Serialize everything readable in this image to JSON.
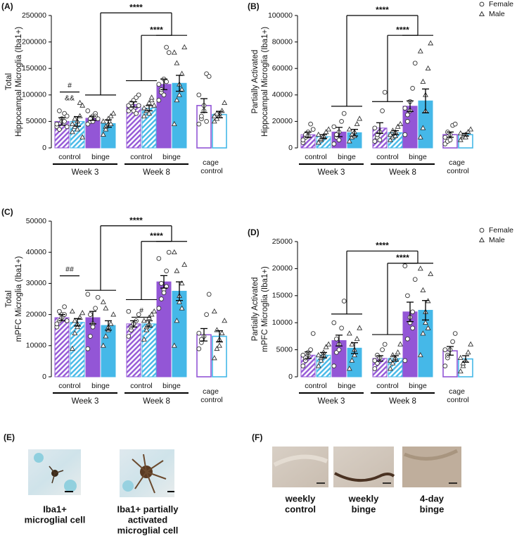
{
  "chart_data": [
    {
      "type": "bar",
      "panel_label": "(A)",
      "y_label": [
        "Total",
        "Hippocampal Microglia (Iba1+)"
      ],
      "ylim": [
        0,
        250000
      ],
      "yticks": [
        0,
        50000,
        100000,
        150000,
        200000,
        250000
      ],
      "categories": [
        "control",
        "binge",
        "control",
        "binge",
        "cage control"
      ],
      "x_groups": [
        "Week 3",
        "Week 8"
      ],
      "fill_styles": [
        "hatch",
        "solid",
        "hatch",
        "solid",
        "outline"
      ],
      "legend": false,
      "annotations": [
        "****",
        "****",
        "#",
        "&&"
      ],
      "series": [
        {
          "marker": "circle",
          "color": "#9356d6",
          "values": [
            50000,
            56000,
            82000,
            120000,
            80000
          ],
          "errors": [
            7000,
            4000,
            5000,
            10000,
            13000
          ],
          "points": [
            [
              40000,
              35000,
              55000,
              65000,
              60000,
              45000,
              70000,
              50000,
              50000,
              40000
            ],
            [
              45000,
              50000,
              60000,
              65000,
              55000,
              70000,
              55000,
              50000,
              60000
            ],
            [
              70000,
              75000,
              90000,
              95000,
              100000,
              80000,
              85000,
              70000,
              65000,
              80000
            ],
            [
              90000,
              105000,
              130000,
              190000,
              180000,
              120000,
              110000,
              100000,
              125000
            ],
            [
              45000,
              55000,
              70000,
              140000,
              135000,
              100000,
              60000,
              80000,
              50000
            ]
          ]
        },
        {
          "marker": "triangle",
          "color": "#45b8e8",
          "values": [
            50000,
            46000,
            75000,
            122000,
            63000
          ],
          "errors": [
            9000,
            7000,
            5000,
            15000,
            6000
          ],
          "points": [
            [
              30000,
              40000,
              50000,
              85000,
              80000,
              45000,
              55000,
              35000,
              60000,
              20000
            ],
            [
              25000,
              35000,
              45000,
              60000,
              65000,
              50000,
              40000,
              55000,
              45000
            ],
            [
              60000,
              70000,
              85000,
              90000,
              80000,
              75000,
              70000,
              65000,
              95000
            ],
            [
              45000,
              90000,
              120000,
              140000,
              190000,
              180000,
              160000,
              100000,
              110000
            ],
            [
              50000,
              55000,
              65000,
              70000,
              85000,
              60000,
              65000,
              60000
            ]
          ]
        }
      ]
    },
    {
      "type": "bar",
      "panel_label": "(B)",
      "y_label": [
        "Partially Activated",
        "Hippocampal Microglia (Iba1+)"
      ],
      "ylim": [
        0,
        100000
      ],
      "yticks": [
        0,
        20000,
        40000,
        60000,
        80000,
        100000
      ],
      "categories": [
        "control",
        "binge",
        "control",
        "binge",
        "cage control"
      ],
      "x_groups": [
        "Week 3",
        "Week 8"
      ],
      "fill_styles": [
        "hatch",
        "solid",
        "hatch",
        "solid",
        "outline"
      ],
      "legend": "top-right",
      "annotations": [
        "****",
        "****"
      ],
      "series": [
        {
          "name": "Female",
          "marker": "circle",
          "color": "#9356d6",
          "values": [
            10000,
            12000,
            15000,
            31500,
            10000
          ],
          "errors": [
            2000,
            3500,
            4000,
            4000,
            2000
          ],
          "points": [
            [
              4000,
              8000,
              12000,
              18000,
              14000,
              6000,
              10000,
              9000
            ],
            [
              3000,
              8000,
              12000,
              20000,
              26000,
              16000,
              10000,
              6000
            ],
            [
              5000,
              8000,
              12000,
              28000,
              42000,
              15000,
              10000,
              6000
            ],
            [
              10000,
              20000,
              28000,
              45000,
              64000,
              30000,
              25000,
              35000
            ],
            [
              3000,
              5000,
              10000,
              17000,
              18000,
              8000,
              12000,
              6000
            ]
          ]
        },
        {
          "name": "Male",
          "marker": "triangle",
          "color": "#45b8e8",
          "values": [
            8500,
            11500,
            11500,
            35500,
            10000
          ],
          "errors": [
            1500,
            2500,
            1500,
            9000,
            1000
          ],
          "points": [
            [
              4000,
              6000,
              8000,
              12000,
              14000,
              10000,
              7000,
              9000
            ],
            [
              5000,
              8000,
              12000,
              18000,
              22000,
              14000,
              10000,
              9000
            ],
            [
              6000,
              8000,
              12000,
              16000,
              18000,
              10000,
              13000,
              9000
            ],
            [
              8000,
              15000,
              40000,
              60000,
              79000,
              73000,
              50000,
              28000
            ],
            [
              6000,
              8000,
              10000,
              12000,
              14000,
              11000,
              9000,
              8000
            ]
          ]
        }
      ]
    },
    {
      "type": "bar",
      "panel_label": "(C)",
      "y_label": [
        "Total",
        "mPFC Microglia (Iba1+)"
      ],
      "ylim": [
        0,
        50000
      ],
      "yticks": [
        0,
        10000,
        20000,
        30000,
        40000,
        50000
      ],
      "categories": [
        "control",
        "binge",
        "control",
        "binge",
        "cage control"
      ],
      "x_groups": [
        "Week 3",
        "Week 8"
      ],
      "fill_styles": [
        "hatch",
        "solid",
        "hatch",
        "solid",
        "outline"
      ],
      "legend": false,
      "annotations": [
        "****",
        "****",
        "##",
        "#"
      ],
      "series": [
        {
          "marker": "circle",
          "color": "#9356d6",
          "values": [
            19000,
            19000,
            17000,
            30500,
            13500
          ],
          "errors": [
            1000,
            2000,
            1000,
            2000,
            2000
          ],
          "points": [
            [
              16000,
              18000,
              20000,
              22500,
              18000,
              17000,
              21000,
              19000,
              20000
            ],
            [
              9000,
              13000,
              17000,
              22000,
              25500,
              26500,
              20000,
              16000
            ],
            [
              13000,
              15000,
              17000,
              18000,
              20000,
              21000,
              16000,
              17000
            ],
            [
              22000,
              25000,
              28000,
              34000,
              40000,
              38000,
              30000,
              27000,
              29000
            ],
            [
              9000,
              11000,
              13000,
              20000,
              26500,
              14000,
              12000
            ]
          ]
        },
        {
          "marker": "triangle",
          "color": "#45b8e8",
          "values": [
            17500,
            16500,
            17000,
            27500,
            13000
          ],
          "errors": [
            1200,
            1500,
            1000,
            3000,
            1800
          ],
          "points": [
            [
              9000,
              14000,
              17000,
              19000,
              20500,
              21000,
              18000,
              16000,
              19000
            ],
            [
              10000,
              13000,
              15000,
              17000,
              20000,
              24000,
              22000,
              16000
            ],
            [
              12000,
              15000,
              17000,
              20000,
              21000,
              18000,
              16000,
              19000
            ],
            [
              10000,
              18000,
              24000,
              30000,
              36000,
              40000,
              34000,
              26000,
              22000
            ],
            [
              6000,
              9000,
              12000,
              14000,
              18000,
              21000,
              15000,
              10000
            ]
          ]
        }
      ]
    },
    {
      "type": "bar",
      "panel_label": "(D)",
      "y_label": [
        "Partially Activated",
        "mPFC Microglia (Iba1+)"
      ],
      "ylim": [
        0,
        25000
      ],
      "yticks": [
        0,
        5000,
        10000,
        15000,
        20000,
        25000
      ],
      "categories": [
        "control",
        "binge",
        "control",
        "binge",
        "cage control"
      ],
      "x_groups": [
        "Week 3",
        "Week 8"
      ],
      "fill_styles": [
        "hatch",
        "solid",
        "hatch",
        "solid",
        "outline"
      ],
      "legend": "top-right",
      "annotations": [
        "****",
        "****"
      ],
      "series": [
        {
          "name": "Female",
          "marker": "circle",
          "color": "#9356d6",
          "values": [
            4000,
            6700,
            3400,
            12000,
            4800
          ],
          "errors": [
            600,
            1000,
            500,
            1800,
            800
          ],
          "points": [
            [
              2000,
              3000,
              4000,
              5000,
              8000,
              4000,
              3500,
              4500
            ],
            [
              2000,
              4500,
              6000,
              9000,
              14000,
              10000,
              7000,
              5000
            ],
            [
              1500,
              2500,
              3500,
              5000,
              6000,
              3000,
              4000
            ],
            [
              3000,
              7000,
              10000,
              12000,
              18000,
              20500,
              15000,
              11000,
              9000
            ],
            [
              2000,
              3500,
              5000,
              6500,
              8000,
              5000,
              4000
            ]
          ]
        },
        {
          "name": "Male",
          "marker": "triangle",
          "color": "#45b8e8",
          "values": [
            4000,
            5300,
            3400,
            12300,
            3300
          ],
          "errors": [
            500,
            1000,
            500,
            1800,
            600
          ],
          "points": [
            [
              2000,
              3000,
              4000,
              5500,
              6000,
              4000,
              3500,
              4500
            ],
            [
              1500,
              3000,
              5000,
              7000,
              9000,
              8000,
              6000,
              4000
            ],
            [
              1500,
              2500,
              3500,
              4500,
              6000,
              3000,
              4000
            ],
            [
              4000,
              8000,
              10000,
              14000,
              19000,
              20000,
              16000,
              12000,
              9000
            ],
            [
              1000,
              2000,
              3000,
              4500,
              6000,
              3500,
              2500
            ]
          ]
        }
      ]
    }
  ],
  "panel_e": {
    "label": "(E)",
    "captions": [
      [
        "Iba1+",
        "microglial cell"
      ],
      [
        "Iba1+ partially",
        "activated",
        "microglial cell"
      ]
    ]
  },
  "panel_f": {
    "label": "(F)",
    "captions": [
      [
        "weekly",
        "control"
      ],
      [
        "weekly",
        "binge"
      ],
      [
        "4-day",
        "binge"
      ]
    ]
  }
}
